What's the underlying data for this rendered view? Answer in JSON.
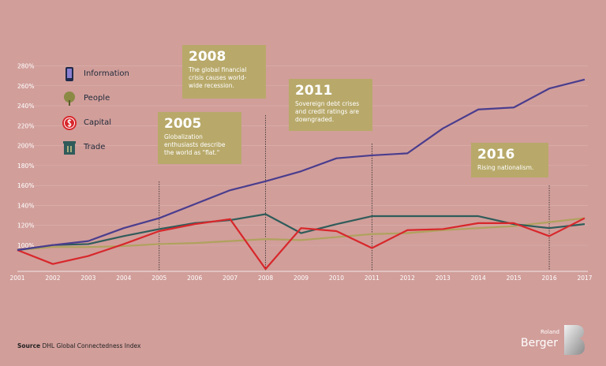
{
  "chart_data": {
    "type": "line",
    "x": [
      "2001",
      "2002",
      "2003",
      "2004",
      "2005",
      "2006",
      "2007",
      "2008",
      "2009",
      "2010",
      "2011",
      "2012",
      "2013",
      "2014",
      "2015",
      "2016",
      "2017"
    ],
    "y_ticks": [
      "100%",
      "120%",
      "140%",
      "160%",
      "180%",
      "200%",
      "220%",
      "240%",
      "260%",
      "280%"
    ],
    "ylim": [
      95,
      285
    ],
    "series": [
      {
        "name": "Information",
        "color": "#4a3d8e",
        "values": [
          100,
          105,
          109,
          122,
          132,
          146,
          160,
          169,
          179,
          192,
          195,
          197,
          222,
          241,
          243,
          262,
          271
        ]
      },
      {
        "name": "People",
        "color": "#b0a25e",
        "values": [
          100,
          103,
          103,
          104,
          106,
          107,
          109,
          111,
          110,
          113,
          116,
          117,
          120,
          122,
          124,
          128,
          132
        ]
      },
      {
        "name": "Capital",
        "color": "#d8272b",
        "values": [
          100,
          86,
          94,
          106,
          119,
          126,
          131,
          81,
          122,
          119,
          102,
          120,
          121,
          127,
          127,
          114,
          132
        ]
      },
      {
        "name": "Trade",
        "color": "#2f5c5a",
        "values": [
          100,
          105,
          106,
          114,
          121,
          127,
          130,
          136,
          117,
          126,
          134,
          134,
          134,
          134,
          126,
          122,
          126
        ]
      }
    ],
    "callouts": [
      {
        "year": "2005",
        "text": "Globalization enthusiasts describe the world as \"flat.\""
      },
      {
        "year": "2008",
        "text": "The global financial crisis causes world-wide recession."
      },
      {
        "year": "2011",
        "text": "Sovereign debt crises and credit ratings are downgraded."
      },
      {
        "year": "2016",
        "text": "Rising nationalism."
      }
    ],
    "source_label": "Source",
    "source_text": "DHL Global Connectedness Index",
    "grid": true
  },
  "brand": {
    "top": "Roland",
    "bottom": "Berger"
  },
  "legend_icons": [
    "phone-icon",
    "tree-icon",
    "dollar-coin-icon",
    "trash-bin-icon"
  ]
}
